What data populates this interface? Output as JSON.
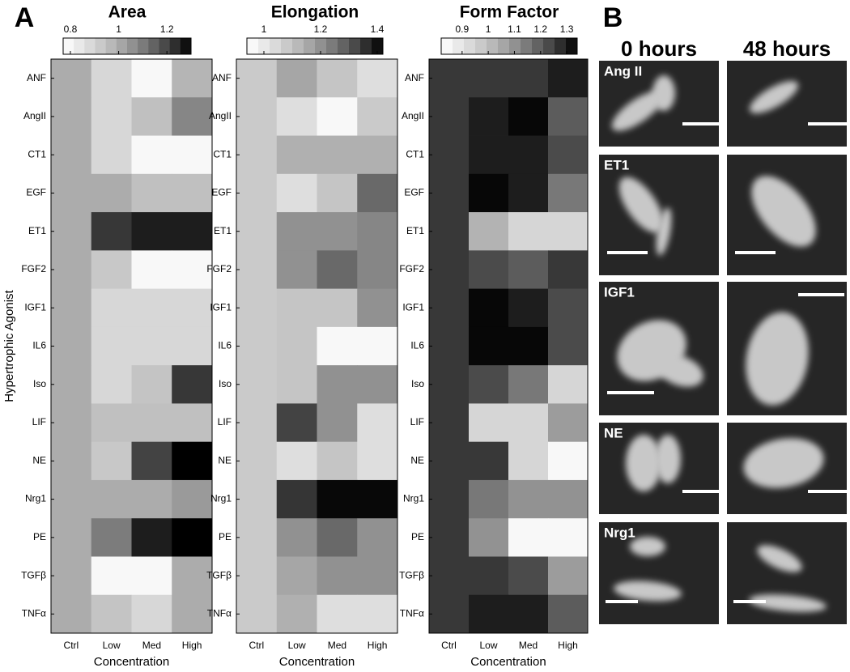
{
  "panel_labels": [
    "A",
    "B"
  ],
  "chart_data": [
    {
      "type": "heatmap",
      "title": "Area",
      "xlabel": "Concentration",
      "ylabel": "Hypertrophic Agonist",
      "categories": [
        "Ctrl",
        "Low",
        "Med",
        "High"
      ],
      "y_categories": [
        "ANF",
        "AngII",
        "CT1",
        "EGF",
        "ET1",
        "FGF2",
        "IGF1",
        "IL6",
        "Iso",
        "LIF",
        "NE",
        "Nrg1",
        "PE",
        "TGFβ",
        "TNFα"
      ],
      "values": [
        [
          1.0,
          0.89,
          0.79,
          0.98
        ],
        [
          1.0,
          0.89,
          0.95,
          1.08
        ],
        [
          1.0,
          0.89,
          0.79,
          0.79
        ],
        [
          1.0,
          1.0,
          0.95,
          0.95
        ],
        [
          1.0,
          1.22,
          1.26,
          1.26
        ],
        [
          1.0,
          0.93,
          0.79,
          0.79
        ],
        [
          1.0,
          0.89,
          0.89,
          0.89
        ],
        [
          1.0,
          0.89,
          0.89,
          0.89
        ],
        [
          1.0,
          0.89,
          0.94,
          1.22
        ],
        [
          1.0,
          0.95,
          0.95,
          0.95
        ],
        [
          1.0,
          0.93,
          1.2,
          1.3
        ],
        [
          1.0,
          1.0,
          1.0,
          1.04
        ],
        [
          1.0,
          1.1,
          1.26,
          1.3
        ],
        [
          1.0,
          0.79,
          0.79,
          1.0
        ],
        [
          1.0,
          0.94,
          0.89,
          1.0
        ]
      ],
      "clim": [
        0.77,
        1.3
      ],
      "cticks": [
        0.8,
        1,
        1.2
      ],
      "colormap": [
        "#ffffff",
        "#ededed",
        "#dcdcdc",
        "#c8c8c8",
        "#b4b4b4",
        "#9c9c9c",
        "#828282",
        "#666666",
        "#474747",
        "#262626",
        "#000000"
      ]
    },
    {
      "type": "heatmap",
      "title": "Elongation",
      "xlabel": "Concentration",
      "categories": [
        "Ctrl",
        "Low",
        "Med",
        "High"
      ],
      "y_categories": [
        "ANF",
        "AngII",
        "CT1",
        "EGF",
        "ET1",
        "FGF2",
        "IGF1",
        "IL6",
        "Iso",
        "LIF",
        "NE",
        "Nrg1",
        "PE",
        "TGFβ",
        "TNFα"
      ],
      "values": [
        [
          1.08,
          1.16,
          1.09,
          1.03
        ],
        [
          1.08,
          1.03,
          0.96,
          1.08
        ],
        [
          1.08,
          1.14,
          1.14,
          1.14
        ],
        [
          1.08,
          1.03,
          1.09,
          1.27
        ],
        [
          1.08,
          1.2,
          1.2,
          1.22
        ],
        [
          1.08,
          1.2,
          1.27,
          1.22
        ],
        [
          1.08,
          1.09,
          1.09,
          1.2
        ],
        [
          1.08,
          1.09,
          0.96,
          0.96
        ],
        [
          1.08,
          1.09,
          1.2,
          1.2
        ],
        [
          1.08,
          1.33,
          1.2,
          1.03
        ],
        [
          1.08,
          1.03,
          1.09,
          1.03
        ],
        [
          1.08,
          1.35,
          1.41,
          1.41
        ],
        [
          1.08,
          1.2,
          1.27,
          1.2
        ],
        [
          1.08,
          1.16,
          1.2,
          1.2
        ],
        [
          1.08,
          1.14,
          1.03,
          1.03
        ]
      ],
      "clim": [
        0.94,
        1.42
      ],
      "cticks": [
        1,
        1.2,
        1.4
      ],
      "colormap": [
        "#ffffff",
        "#ededed",
        "#dcdcdc",
        "#c8c8c8",
        "#b4b4b4",
        "#9c9c9c",
        "#828282",
        "#666666",
        "#474747",
        "#262626",
        "#000000"
      ]
    },
    {
      "type": "heatmap",
      "title": "Form Factor",
      "xlabel": "Concentration",
      "categories": [
        "Ctrl",
        "Low",
        "Med",
        "High"
      ],
      "y_categories": [
        "ANF",
        "AngII",
        "CT1",
        "EGF",
        "ET1",
        "FGF2",
        "IGF1",
        "IL6",
        "Iso",
        "LIF",
        "NE",
        "Nrg1",
        "PE",
        "TGFβ",
        "TNFα"
      ],
      "values": [
        [
          1.26,
          1.26,
          1.26,
          1.3
        ],
        [
          1.26,
          1.3,
          1.33,
          1.2
        ],
        [
          1.26,
          1.3,
          1.3,
          1.23
        ],
        [
          1.26,
          1.33,
          1.3,
          1.15
        ],
        [
          1.26,
          1.03,
          0.94,
          0.94
        ],
        [
          1.26,
          1.23,
          1.2,
          1.26
        ],
        [
          1.26,
          1.33,
          1.3,
          1.23
        ],
        [
          1.26,
          1.33,
          1.33,
          1.23
        ],
        [
          1.26,
          1.23,
          1.15,
          0.94
        ],
        [
          1.26,
          0.94,
          0.94,
          1.08
        ],
        [
          1.26,
          1.26,
          0.94,
          0.84
        ],
        [
          1.26,
          1.15,
          1.1,
          1.1
        ],
        [
          1.26,
          1.1,
          0.84,
          0.84
        ],
        [
          1.26,
          1.26,
          1.23,
          1.08
        ],
        [
          1.26,
          1.3,
          1.3,
          1.2
        ]
      ],
      "clim": [
        0.82,
        1.34
      ],
      "cticks": [
        0.9,
        1,
        1.1,
        1.2,
        1.3
      ],
      "colormap": [
        "#ffffff",
        "#ededed",
        "#dcdcdc",
        "#c8c8c8",
        "#b4b4b4",
        "#9c9c9c",
        "#828282",
        "#666666",
        "#474747",
        "#262626",
        "#000000"
      ]
    }
  ],
  "images": {
    "columns": [
      "0 hours",
      "48 hours"
    ],
    "rows": [
      "Ang II",
      "ET1",
      "IGF1",
      "NE",
      "Nrg1"
    ]
  }
}
